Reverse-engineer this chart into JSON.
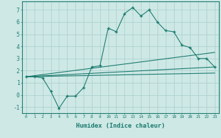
{
  "title": "",
  "xlabel": "Humidex (Indice chaleur)",
  "bg_color": "#cde8e5",
  "grid_color": "#a8ceca",
  "line_color": "#1a7a6e",
  "xlim": [
    -0.5,
    23.5
  ],
  "ylim": [
    -1.5,
    7.7
  ],
  "yticks": [
    -1,
    0,
    1,
    2,
    3,
    4,
    5,
    6,
    7
  ],
  "xticks": [
    0,
    1,
    2,
    3,
    4,
    5,
    6,
    7,
    8,
    9,
    10,
    11,
    12,
    13,
    14,
    15,
    16,
    17,
    18,
    19,
    20,
    21,
    22,
    23
  ],
  "series1_x": [
    0,
    1,
    2,
    3,
    4,
    5,
    6,
    7,
    8,
    9,
    10,
    11,
    12,
    13,
    14,
    15,
    16,
    17,
    18,
    19,
    20,
    21,
    22,
    23
  ],
  "series1_y": [
    1.5,
    1.5,
    1.4,
    0.3,
    -1.1,
    -0.1,
    -0.1,
    0.6,
    2.3,
    2.4,
    5.5,
    5.2,
    6.7,
    7.2,
    6.5,
    7.0,
    6.0,
    5.3,
    5.2,
    4.1,
    3.9,
    3.0,
    3.0,
    2.3
  ],
  "series2_x": [
    0,
    23
  ],
  "series2_y": [
    1.5,
    2.3
  ],
  "series3_x": [
    0,
    23
  ],
  "series3_y": [
    1.5,
    3.5
  ],
  "series4_x": [
    0,
    23
  ],
  "series4_y": [
    1.5,
    1.8
  ]
}
